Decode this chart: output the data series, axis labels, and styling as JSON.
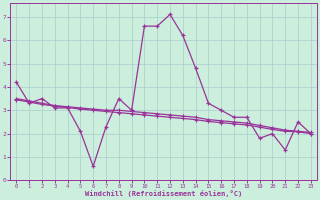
{
  "xlabel": "Windchill (Refroidissement éolien,°C)",
  "ylabel": "",
  "bg_color": "#cceedd",
  "grid_color": "#aacccc",
  "line_color": "#993399",
  "xlim": [
    -0.5,
    23.5
  ],
  "ylim": [
    0,
    7.6
  ],
  "xticks": [
    0,
    1,
    2,
    3,
    4,
    5,
    6,
    7,
    8,
    9,
    10,
    11,
    12,
    13,
    14,
    15,
    16,
    17,
    18,
    19,
    20,
    21,
    22,
    23
  ],
  "yticks": [
    0,
    1,
    2,
    3,
    4,
    5,
    6,
    7
  ],
  "data_x": [
    0,
    1,
    2,
    3,
    4,
    5,
    6,
    7,
    8,
    9,
    10,
    11,
    12,
    13,
    14,
    15,
    16,
    17,
    18,
    19,
    20,
    21,
    22,
    23
  ],
  "line1_y": [
    4.2,
    3.3,
    3.5,
    3.1,
    3.1,
    2.1,
    0.6,
    2.3,
    3.5,
    3.0,
    6.6,
    6.6,
    7.1,
    6.2,
    4.8,
    3.3,
    3.0,
    2.7,
    2.7,
    1.8,
    2.0,
    1.3,
    2.5,
    2.0
  ],
  "line2_y": [
    3.5,
    3.4,
    3.3,
    3.2,
    3.15,
    3.1,
    3.05,
    3.0,
    3.0,
    2.95,
    2.9,
    2.85,
    2.8,
    2.75,
    2.7,
    2.6,
    2.55,
    2.5,
    2.45,
    2.35,
    2.25,
    2.15,
    2.1,
    2.05
  ],
  "line3_y": [
    3.45,
    3.35,
    3.25,
    3.18,
    3.12,
    3.05,
    3.0,
    2.95,
    2.9,
    2.85,
    2.8,
    2.75,
    2.7,
    2.65,
    2.6,
    2.52,
    2.47,
    2.42,
    2.37,
    2.28,
    2.18,
    2.1,
    2.08,
    2.0
  ]
}
